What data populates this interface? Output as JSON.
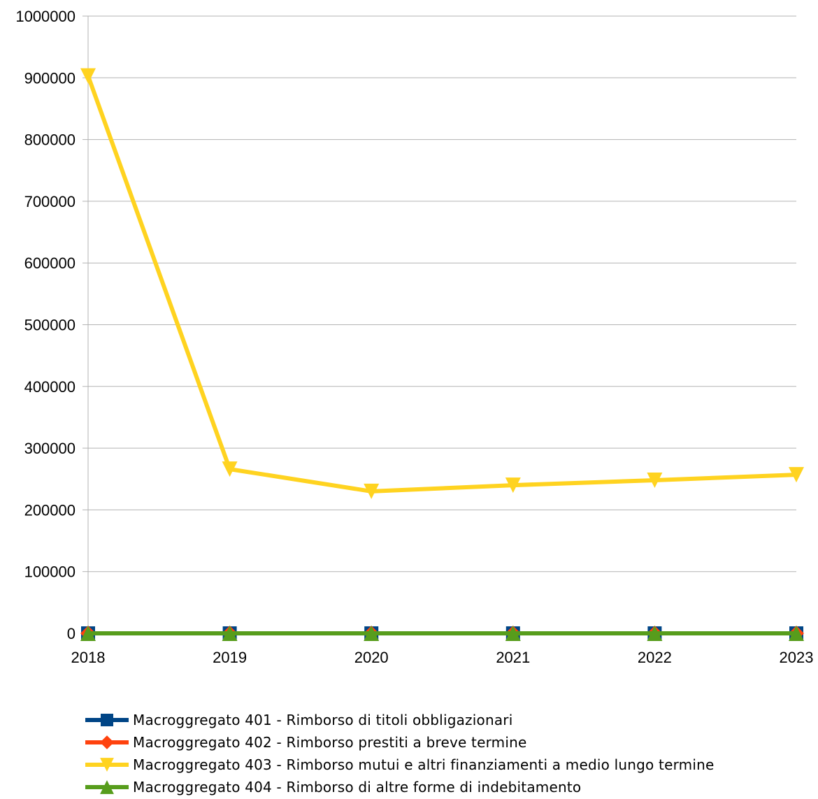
{
  "chart_data": {
    "type": "line",
    "categories": [
      "2018",
      "2019",
      "2020",
      "2021",
      "2022",
      "2023"
    ],
    "ylim": [
      0,
      1000000
    ],
    "yticks": [
      0,
      100000,
      200000,
      300000,
      400000,
      500000,
      600000,
      700000,
      800000,
      900000,
      1000000
    ],
    "grid": true,
    "legend_position": "bottom",
    "series": [
      {
        "name": "Macroggregato 401 - Rimborso di titoli obbligazionari",
        "color": "#004586",
        "marker": "square",
        "values": [
          0,
          0,
          0,
          0,
          0,
          0
        ]
      },
      {
        "name": "Macroggregato 402 - Rimborso prestiti a breve termine",
        "color": "#ff420e",
        "marker": "diamond",
        "values": [
          0,
          0,
          0,
          0,
          0,
          0
        ]
      },
      {
        "name": "Macroggregato 403 - Rimborso mutui e altri finanziamenti a medio lungo termine",
        "color": "#ffd320",
        "marker": "triangle-down",
        "values": [
          903000,
          266000,
          230000,
          240000,
          248000,
          257000
        ]
      },
      {
        "name": "Macroggregato 404 - Rimborso di altre forme di indebitamento",
        "color": "#579d1c",
        "marker": "triangle-up",
        "values": [
          0,
          0,
          0,
          0,
          0,
          0
        ]
      }
    ]
  }
}
